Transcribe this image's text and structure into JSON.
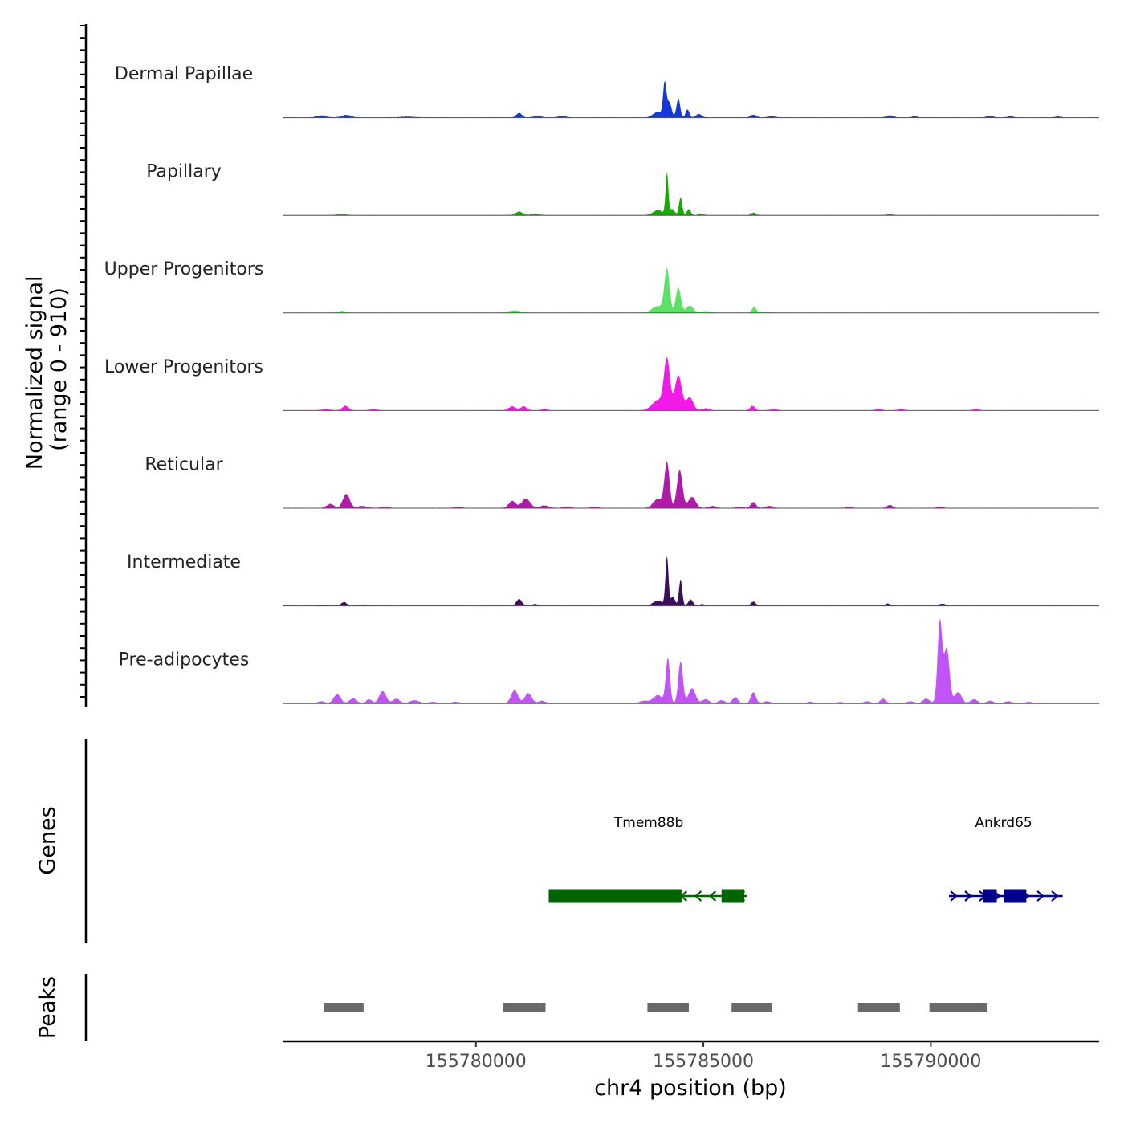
{
  "chart_data": {
    "type": "area",
    "title": "",
    "ylabel_line1": "Normalized signal",
    "ylabel_line2": "(range 0 - 910)",
    "xlabel": "chr4 position (bp)",
    "xlim": [
      155775750,
      155793700
    ],
    "ylim": [
      0,
      910
    ],
    "grid": false,
    "x_ticks": [
      155780000,
      155785000,
      155790000
    ],
    "x_tick_labels": [
      "155780000",
      "155785000",
      "155790000"
    ],
    "tracks": [
      {
        "name": "Dermal Papillae",
        "color": "#1538d8",
        "peaks": [
          {
            "x": 155776600,
            "w": 200,
            "h": 20
          },
          {
            "x": 155777150,
            "w": 200,
            "h": 25
          },
          {
            "x": 155778500,
            "w": 300,
            "h": 8
          },
          {
            "x": 155780950,
            "w": 120,
            "h": 45
          },
          {
            "x": 155781350,
            "w": 150,
            "h": 18
          },
          {
            "x": 155781900,
            "w": 150,
            "h": 16
          },
          {
            "x": 155784000,
            "w": 200,
            "h": 55
          },
          {
            "x": 155784150,
            "w": 70,
            "h": 330
          },
          {
            "x": 155784250,
            "w": 100,
            "h": 150
          },
          {
            "x": 155784450,
            "w": 80,
            "h": 190
          },
          {
            "x": 155784650,
            "w": 80,
            "h": 80
          },
          {
            "x": 155784900,
            "w": 120,
            "h": 35
          },
          {
            "x": 155786100,
            "w": 120,
            "h": 28
          },
          {
            "x": 155786500,
            "w": 150,
            "h": 12
          },
          {
            "x": 155789100,
            "w": 150,
            "h": 20
          },
          {
            "x": 155789650,
            "w": 120,
            "h": 12
          },
          {
            "x": 155791300,
            "w": 150,
            "h": 14
          },
          {
            "x": 155791750,
            "w": 120,
            "h": 13
          },
          {
            "x": 155792800,
            "w": 120,
            "h": 10
          }
        ]
      },
      {
        "name": "Papillary",
        "color": "#19a800",
        "peaks": [
          {
            "x": 155777050,
            "w": 200,
            "h": 10
          },
          {
            "x": 155780950,
            "w": 150,
            "h": 35
          },
          {
            "x": 155781300,
            "w": 200,
            "h": 10
          },
          {
            "x": 155784000,
            "w": 200,
            "h": 50
          },
          {
            "x": 155784200,
            "w": 60,
            "h": 420
          },
          {
            "x": 155784320,
            "w": 100,
            "h": 60
          },
          {
            "x": 155784500,
            "w": 70,
            "h": 180
          },
          {
            "x": 155784680,
            "w": 80,
            "h": 60
          },
          {
            "x": 155784950,
            "w": 100,
            "h": 15
          },
          {
            "x": 155786100,
            "w": 100,
            "h": 25
          },
          {
            "x": 155789100,
            "w": 120,
            "h": 10
          }
        ]
      },
      {
        "name": "Upper Progenitors",
        "color": "#5be266",
        "peaks": [
          {
            "x": 155777050,
            "w": 150,
            "h": 18
          },
          {
            "x": 155780850,
            "w": 280,
            "h": 22
          },
          {
            "x": 155784000,
            "w": 250,
            "h": 65
          },
          {
            "x": 155784200,
            "w": 110,
            "h": 430
          },
          {
            "x": 155784450,
            "w": 110,
            "h": 250
          },
          {
            "x": 155784700,
            "w": 150,
            "h": 70
          },
          {
            "x": 155785050,
            "w": 200,
            "h": 15
          },
          {
            "x": 155786120,
            "w": 90,
            "h": 60
          },
          {
            "x": 155786400,
            "w": 150,
            "h": 10
          }
        ]
      },
      {
        "name": "Lower Progenitors",
        "color": "#f21ae6",
        "peaks": [
          {
            "x": 155776700,
            "w": 200,
            "h": 10
          },
          {
            "x": 155777130,
            "w": 130,
            "h": 45
          },
          {
            "x": 155777750,
            "w": 150,
            "h": 12
          },
          {
            "x": 155780800,
            "w": 150,
            "h": 40
          },
          {
            "x": 155781050,
            "w": 130,
            "h": 40
          },
          {
            "x": 155781500,
            "w": 150,
            "h": 10
          },
          {
            "x": 155784000,
            "w": 250,
            "h": 100
          },
          {
            "x": 155784200,
            "w": 130,
            "h": 500
          },
          {
            "x": 155784450,
            "w": 150,
            "h": 350
          },
          {
            "x": 155784700,
            "w": 150,
            "h": 130
          },
          {
            "x": 155785050,
            "w": 150,
            "h": 20
          },
          {
            "x": 155786080,
            "w": 100,
            "h": 45
          },
          {
            "x": 155786550,
            "w": 150,
            "h": 10
          },
          {
            "x": 155788850,
            "w": 150,
            "h": 10
          },
          {
            "x": 155789350,
            "w": 150,
            "h": 10
          },
          {
            "x": 155791000,
            "w": 150,
            "h": 10
          }
        ]
      },
      {
        "name": "Reticular",
        "color": "#b01aa8",
        "peaks": [
          {
            "x": 155776800,
            "w": 150,
            "h": 40
          },
          {
            "x": 155777150,
            "w": 150,
            "h": 140
          },
          {
            "x": 155777500,
            "w": 200,
            "h": 20
          },
          {
            "x": 155778000,
            "w": 150,
            "h": 12
          },
          {
            "x": 155779600,
            "w": 150,
            "h": 10
          },
          {
            "x": 155780800,
            "w": 150,
            "h": 70
          },
          {
            "x": 155781100,
            "w": 180,
            "h": 95
          },
          {
            "x": 155781500,
            "w": 180,
            "h": 25
          },
          {
            "x": 155782000,
            "w": 150,
            "h": 15
          },
          {
            "x": 155782600,
            "w": 150,
            "h": 10
          },
          {
            "x": 155784000,
            "w": 200,
            "h": 90
          },
          {
            "x": 155784200,
            "w": 110,
            "h": 450
          },
          {
            "x": 155784480,
            "w": 120,
            "h": 380
          },
          {
            "x": 155784750,
            "w": 160,
            "h": 110
          },
          {
            "x": 155785200,
            "w": 150,
            "h": 20
          },
          {
            "x": 155785800,
            "w": 150,
            "h": 12
          },
          {
            "x": 155786100,
            "w": 110,
            "h": 60
          },
          {
            "x": 155786450,
            "w": 150,
            "h": 20
          },
          {
            "x": 155788200,
            "w": 150,
            "h": 8
          },
          {
            "x": 155789100,
            "w": 120,
            "h": 30
          },
          {
            "x": 155790200,
            "w": 120,
            "h": 15
          }
        ]
      },
      {
        "name": "Intermediate",
        "color": "#3b0f5c",
        "peaks": [
          {
            "x": 155776650,
            "w": 150,
            "h": 10
          },
          {
            "x": 155777100,
            "w": 120,
            "h": 35
          },
          {
            "x": 155777550,
            "w": 200,
            "h": 10
          },
          {
            "x": 155780950,
            "w": 120,
            "h": 65
          },
          {
            "x": 155781300,
            "w": 150,
            "h": 15
          },
          {
            "x": 155784000,
            "w": 200,
            "h": 50
          },
          {
            "x": 155784200,
            "w": 65,
            "h": 490
          },
          {
            "x": 155784330,
            "w": 90,
            "h": 90
          },
          {
            "x": 155784500,
            "w": 70,
            "h": 260
          },
          {
            "x": 155784720,
            "w": 100,
            "h": 60
          },
          {
            "x": 155784980,
            "w": 120,
            "h": 15
          },
          {
            "x": 155786100,
            "w": 100,
            "h": 40
          },
          {
            "x": 155789050,
            "w": 120,
            "h": 20
          },
          {
            "x": 155790250,
            "w": 150,
            "h": 18
          }
        ]
      },
      {
        "name": "Pre-adipocytes",
        "color": "#c154f6",
        "peaks": [
          {
            "x": 155776600,
            "w": 150,
            "h": 20
          },
          {
            "x": 155776950,
            "w": 150,
            "h": 90
          },
          {
            "x": 155777300,
            "w": 150,
            "h": 50
          },
          {
            "x": 155777650,
            "w": 120,
            "h": 40
          },
          {
            "x": 155777950,
            "w": 150,
            "h": 120
          },
          {
            "x": 155778250,
            "w": 150,
            "h": 45
          },
          {
            "x": 155778650,
            "w": 200,
            "h": 30
          },
          {
            "x": 155779050,
            "w": 150,
            "h": 15
          },
          {
            "x": 155779550,
            "w": 150,
            "h": 15
          },
          {
            "x": 155780850,
            "w": 150,
            "h": 130
          },
          {
            "x": 155781150,
            "w": 150,
            "h": 100
          },
          {
            "x": 155781450,
            "w": 150,
            "h": 25
          },
          {
            "x": 155783700,
            "w": 200,
            "h": 25
          },
          {
            "x": 155784000,
            "w": 200,
            "h": 80
          },
          {
            "x": 155784220,
            "w": 90,
            "h": 450
          },
          {
            "x": 155784500,
            "w": 100,
            "h": 420
          },
          {
            "x": 155784750,
            "w": 150,
            "h": 150
          },
          {
            "x": 155785050,
            "w": 150,
            "h": 40
          },
          {
            "x": 155785400,
            "w": 150,
            "h": 30
          },
          {
            "x": 155785700,
            "w": 120,
            "h": 60
          },
          {
            "x": 155786100,
            "w": 110,
            "h": 110
          },
          {
            "x": 155786400,
            "w": 150,
            "h": 20
          },
          {
            "x": 155787350,
            "w": 150,
            "h": 15
          },
          {
            "x": 155788000,
            "w": 150,
            "h": 12
          },
          {
            "x": 155788600,
            "w": 150,
            "h": 20
          },
          {
            "x": 155788950,
            "w": 120,
            "h": 45
          },
          {
            "x": 155789550,
            "w": 150,
            "h": 20
          },
          {
            "x": 155789900,
            "w": 150,
            "h": 45
          },
          {
            "x": 155790200,
            "w": 100,
            "h": 820
          },
          {
            "x": 155790350,
            "w": 120,
            "h": 550
          },
          {
            "x": 155790600,
            "w": 150,
            "h": 110
          },
          {
            "x": 155790950,
            "w": 150,
            "h": 40
          },
          {
            "x": 155791300,
            "w": 150,
            "h": 25
          },
          {
            "x": 155791700,
            "w": 150,
            "h": 20
          },
          {
            "x": 155792150,
            "w": 150,
            "h": 15
          }
        ]
      }
    ],
    "genes": [
      {
        "name": "Tmem88b",
        "color": "#006400",
        "strand": "-",
        "start": 155781600,
        "end": 155785950,
        "label_x": 155783800,
        "exons": [
          {
            "start": 155781600,
            "end": 155784520
          },
          {
            "start": 155785400,
            "end": 155785900
          }
        ]
      },
      {
        "name": "Ankrd65",
        "color": "#00008b",
        "strand": "+",
        "start": 155790400,
        "end": 155792900,
        "label_x": 155791600,
        "exons": [
          {
            "start": 155791150,
            "end": 155791450
          },
          {
            "start": 155791600,
            "end": 155792100
          }
        ]
      }
    ],
    "peak_regions": [
      {
        "start": 155776650,
        "end": 155777530
      },
      {
        "start": 155780600,
        "end": 155781530
      },
      {
        "start": 155783770,
        "end": 155784680
      },
      {
        "start": 155785620,
        "end": 155786500
      },
      {
        "start": 155788400,
        "end": 155789320
      },
      {
        "start": 155789970,
        "end": 155791230
      }
    ],
    "peak_color": "#696969",
    "panel_labels": {
      "genes": "Genes",
      "peaks": "Peaks"
    }
  }
}
